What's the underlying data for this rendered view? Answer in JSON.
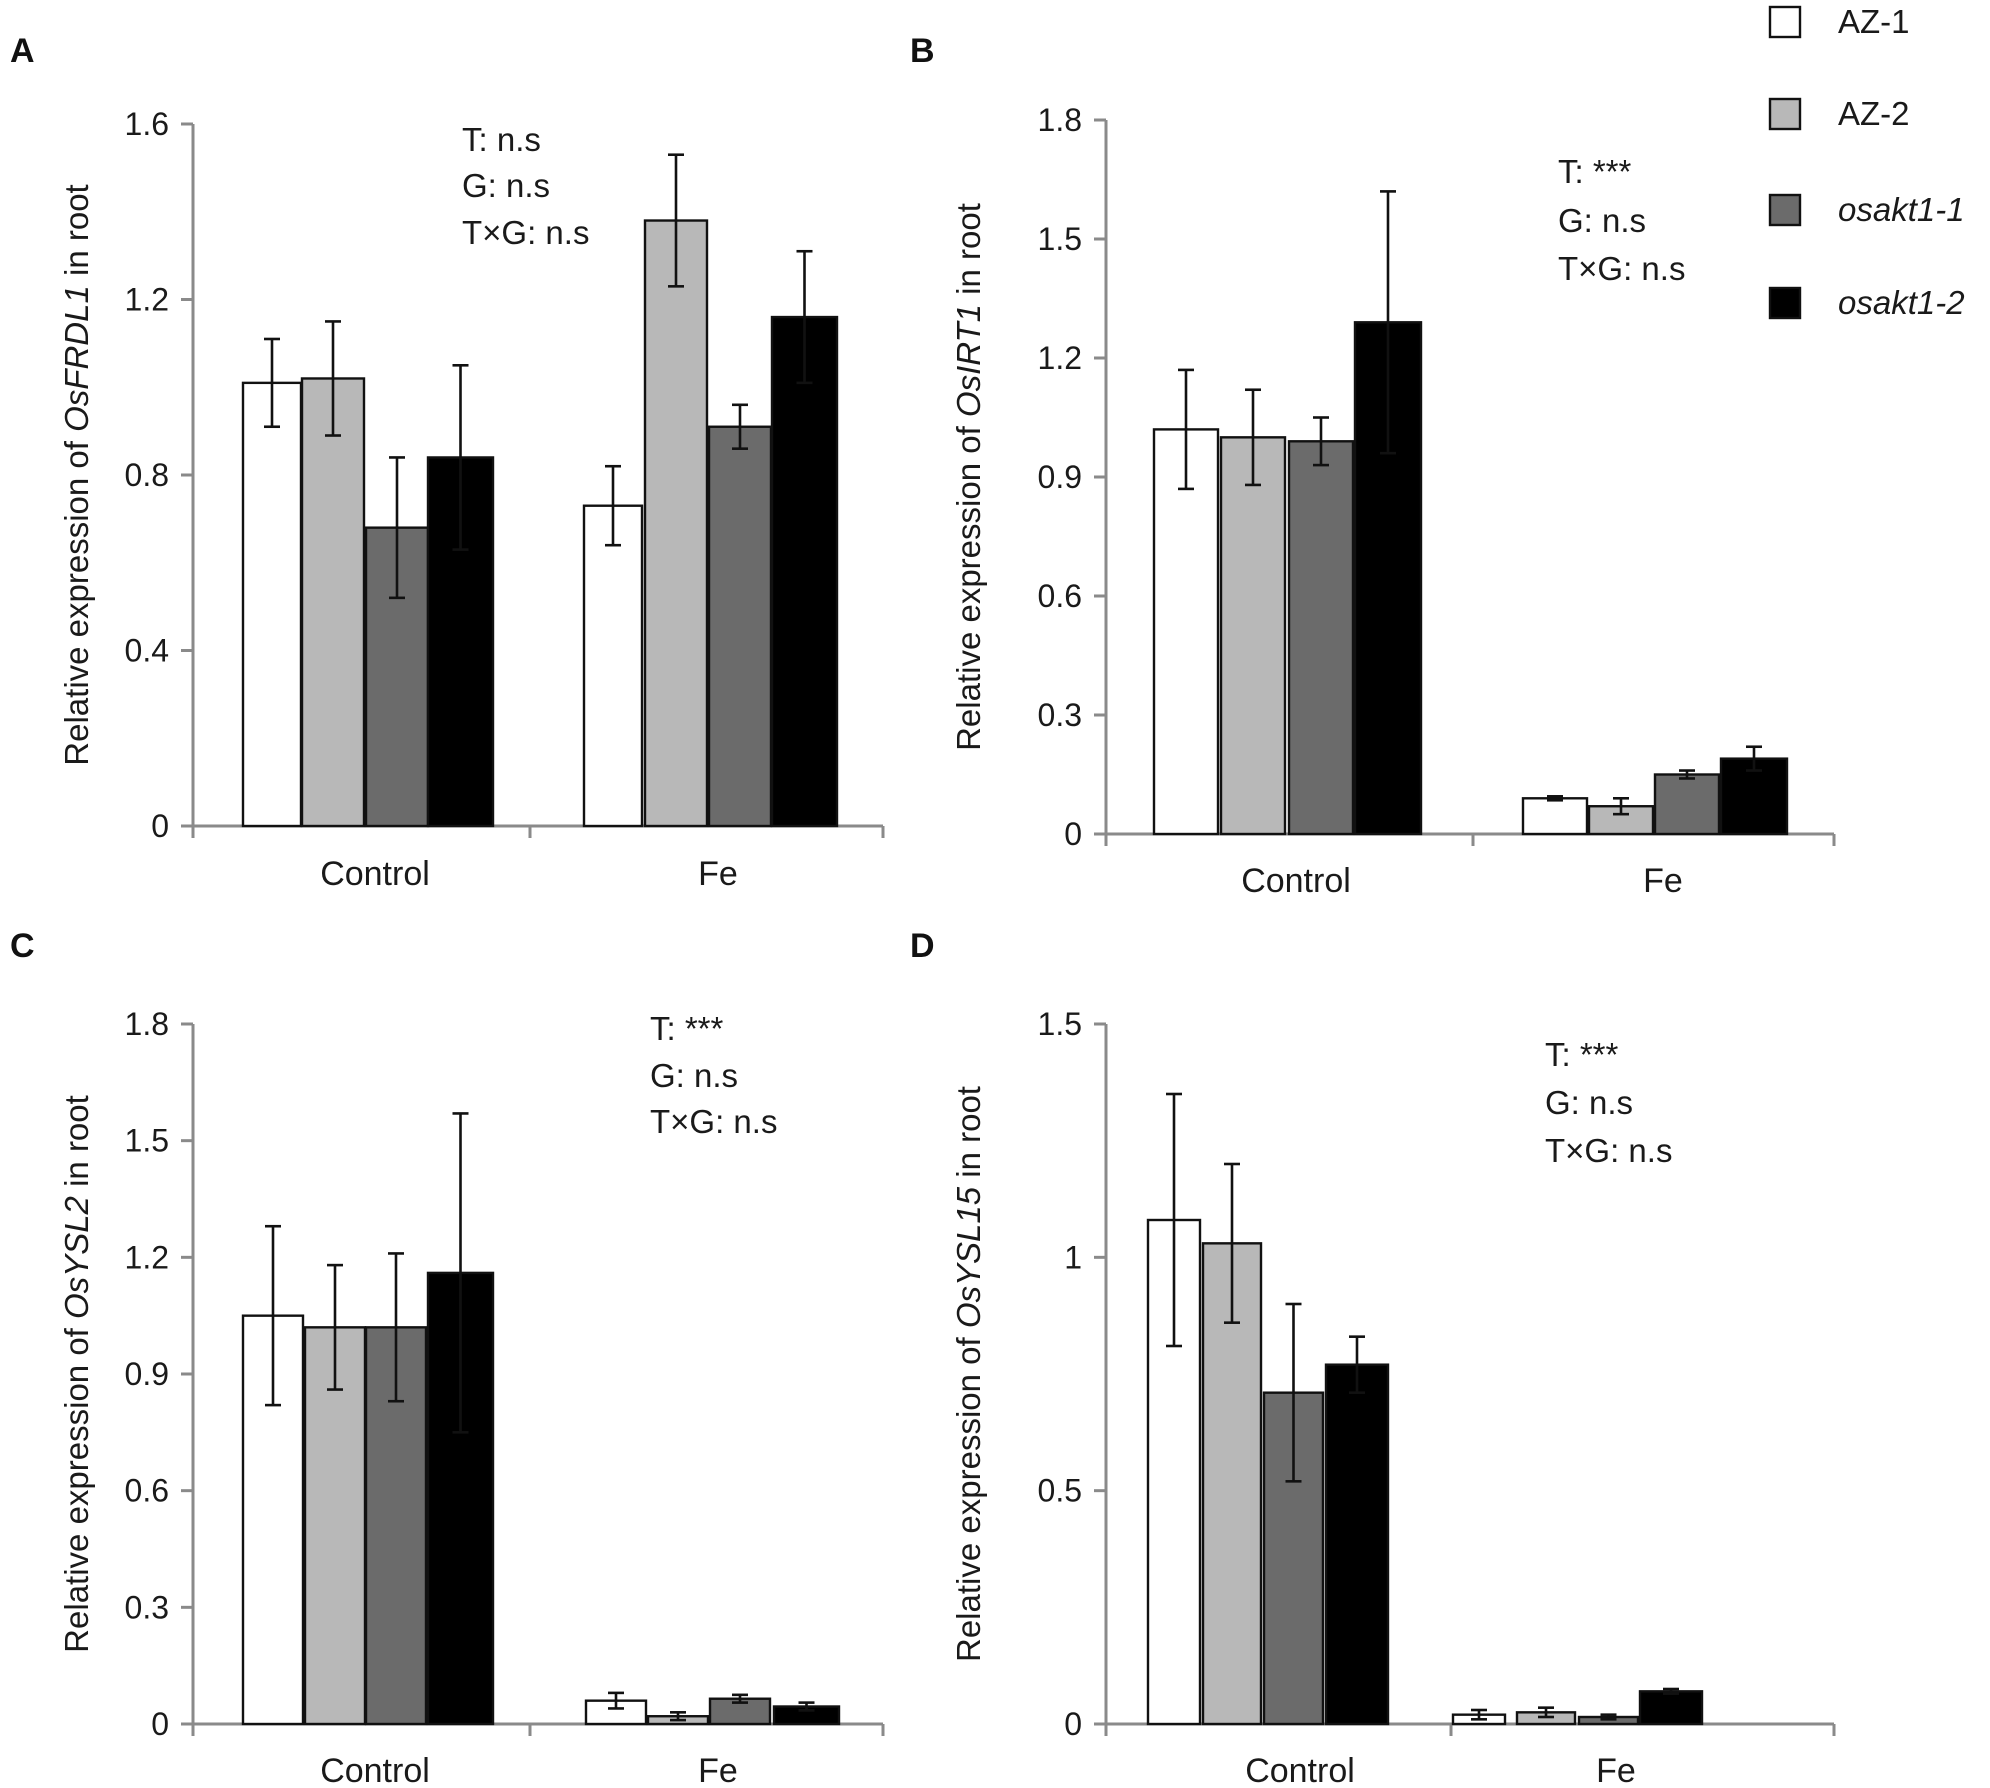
{
  "legend": {
    "items": [
      {
        "label": "AZ-1",
        "color": "#ffffff",
        "italic": false
      },
      {
        "label": "AZ-2",
        "color": "#b8b8b8",
        "italic": false
      },
      {
        "label": "osakt1-1",
        "color": "#6b6b6b",
        "italic": true
      },
      {
        "label": "osakt1-2",
        "color": "#000000",
        "italic": true
      }
    ]
  },
  "chart_data": [
    {
      "panel": "A",
      "type": "bar",
      "ylabel_prefix": "Relative expression of ",
      "gene": "OsFRDL1",
      "ylabel_suffix": " in root",
      "categories": [
        "Control",
        "Fe"
      ],
      "ylim": [
        0,
        1.6
      ],
      "yticks": [
        "0",
        "0.4",
        "0.8",
        "1.2",
        "1.6"
      ],
      "ytick_values": [
        0,
        0.4,
        0.8,
        1.2,
        1.6
      ],
      "series": [
        {
          "name": "AZ-1",
          "values": [
            1.01,
            0.73
          ],
          "errors": [
            0.1,
            0.09
          ]
        },
        {
          "name": "AZ-2",
          "values": [
            1.02,
            1.38
          ],
          "errors": [
            0.13,
            0.15
          ]
        },
        {
          "name": "osakt1-1",
          "values": [
            0.68,
            0.91
          ],
          "errors": [
            0.16,
            0.05
          ]
        },
        {
          "name": "osakt1-2",
          "values": [
            0.84,
            1.16
          ],
          "errors": [
            0.21,
            0.15
          ]
        }
      ],
      "stats": [
        "T: n.s",
        "G: n.s",
        "T×G: n.s"
      ]
    },
    {
      "panel": "B",
      "type": "bar",
      "ylabel_prefix": "Relative expression of ",
      "gene": "OsIRT1",
      "ylabel_suffix": " in root",
      "categories": [
        "Control",
        "Fe"
      ],
      "ylim": [
        0,
        1.8
      ],
      "yticks": [
        "0",
        "0.3",
        "0.6",
        "0.9",
        "1.2",
        "1.5",
        "1.8"
      ],
      "ytick_values": [
        0,
        0.3,
        0.6,
        0.9,
        1.2,
        1.5,
        1.8
      ],
      "series": [
        {
          "name": "AZ-1",
          "values": [
            1.02,
            0.09
          ],
          "errors": [
            0.15,
            0.005
          ]
        },
        {
          "name": "AZ-2",
          "values": [
            1.0,
            0.07
          ],
          "errors": [
            0.12,
            0.02
          ]
        },
        {
          "name": "osakt1-1",
          "values": [
            0.99,
            0.15
          ],
          "errors": [
            0.06,
            0.01
          ]
        },
        {
          "name": "osakt1-2",
          "values": [
            1.29,
            0.19
          ],
          "errors": [
            0.33,
            0.03
          ]
        }
      ],
      "stats": [
        "T: ***",
        "G: n.s",
        "T×G: n.s"
      ]
    },
    {
      "panel": "C",
      "type": "bar",
      "ylabel_prefix": "Relative expression of ",
      "gene": "OsYSL2",
      "ylabel_suffix": " in root",
      "categories": [
        "Control",
        "Fe"
      ],
      "ylim": [
        0,
        1.8
      ],
      "yticks": [
        "0",
        "0.3",
        "0.6",
        "0.9",
        "1.2",
        "1.5",
        "1.8"
      ],
      "ytick_values": [
        0,
        0.3,
        0.6,
        0.9,
        1.2,
        1.5,
        1.8
      ],
      "series": [
        {
          "name": "AZ-1",
          "values": [
            1.05,
            0.06
          ],
          "errors": [
            0.23,
            0.02
          ]
        },
        {
          "name": "AZ-2",
          "values": [
            1.02,
            0.02
          ],
          "errors": [
            0.16,
            0.01
          ]
        },
        {
          "name": "osakt1-1",
          "values": [
            1.02,
            0.065
          ],
          "errors": [
            0.19,
            0.01
          ]
        },
        {
          "name": "osakt1-2",
          "values": [
            1.16,
            0.045
          ],
          "errors": [
            0.41,
            0.01
          ]
        }
      ],
      "stats": [
        "T: ***",
        "G: n.s",
        "T×G: n.s"
      ]
    },
    {
      "panel": "D",
      "type": "bar",
      "ylabel_prefix": "Relative expression of ",
      "gene": "OsYSL15",
      "ylabel_suffix": " in root",
      "categories": [
        "Control",
        "Fe"
      ],
      "ylim": [
        0,
        1.5
      ],
      "yticks": [
        "0",
        "0.5",
        "1",
        "1.5"
      ],
      "ytick_values": [
        0,
        0.5,
        1,
        1.5
      ],
      "series": [
        {
          "name": "AZ-1",
          "values": [
            1.08,
            0.02
          ],
          "errors": [
            0.27,
            0.01
          ]
        },
        {
          "name": "AZ-2",
          "values": [
            1.03,
            0.025
          ],
          "errors": [
            0.17,
            0.01
          ]
        },
        {
          "name": "osakt1-1",
          "values": [
            0.71,
            0.015
          ],
          "errors": [
            0.19,
            0.005
          ]
        },
        {
          "name": "osakt1-2",
          "values": [
            0.77,
            0.07
          ],
          "errors": [
            0.06,
            0.005
          ]
        }
      ],
      "stats": [
        "T: ***",
        "G: n.s",
        "T×G: n.s"
      ]
    }
  ]
}
